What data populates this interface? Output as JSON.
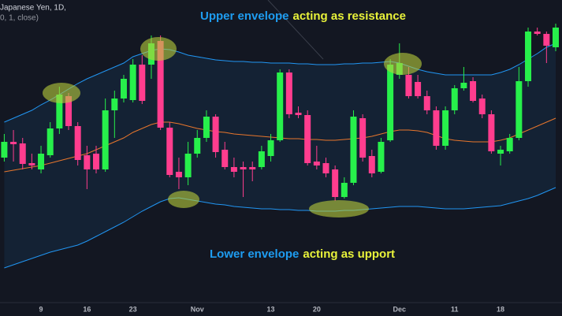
{
  "chart_data": {
    "type": "candlestick",
    "title": "Japanese Yen, 1D,",
    "subtitle": "0, 1, close)",
    "categories": [
      null,
      null,
      null,
      null,
      "9",
      null,
      null,
      null,
      null,
      "16",
      null,
      null,
      null,
      null,
      "23",
      null,
      null,
      null,
      null,
      null,
      null,
      "Nov",
      null,
      null,
      null,
      null,
      null,
      null,
      null,
      "13",
      null,
      null,
      null,
      null,
      "20",
      null,
      null,
      null,
      null,
      null,
      null,
      null,
      null,
      "Dec",
      null,
      null,
      null,
      null,
      null,
      "11",
      null,
      null,
      null,
      null,
      "18",
      null,
      null,
      null,
      null,
      null,
      null
    ],
    "open": [
      200,
      220,
      218,
      193,
      185,
      203,
      237,
      278,
      240,
      203,
      205,
      185,
      260,
      275,
      273,
      318,
      318,
      348,
      238,
      182,
      175,
      205,
      225,
      252,
      210,
      188,
      188,
      188,
      188,
      202,
      222,
      308,
      257,
      254,
      195,
      193,
      185,
      150,
      168,
      250,
      202,
      182,
      222,
      305,
      305,
      296,
      278,
      260,
      215,
      260,
      288,
      297,
      275,
      255,
      205,
      208,
      225,
      297,
      360,
      357,
      340
    ],
    "high": [
      230,
      235,
      225,
      205,
      215,
      245,
      290,
      282,
      245,
      215,
      215,
      275,
      285,
      305,
      325,
      330,
      355,
      355,
      245,
      200,
      220,
      235,
      260,
      255,
      220,
      200,
      195,
      195,
      215,
      230,
      312,
      312,
      265,
      260,
      215,
      200,
      190,
      175,
      260,
      255,
      210,
      225,
      325,
      345,
      315,
      305,
      285,
      265,
      265,
      292,
      315,
      302,
      280,
      260,
      215,
      230,
      315,
      365,
      365,
      360,
      370
    ],
    "low": [
      195,
      195,
      185,
      185,
      180,
      200,
      230,
      235,
      190,
      160,
      180,
      182,
      225,
      270,
      270,
      268,
      300,
      235,
      175,
      160,
      165,
      200,
      220,
      200,
      185,
      175,
      150,
      170,
      185,
      195,
      220,
      250,
      250,
      190,
      185,
      175,
      145,
      148,
      165,
      195,
      175,
      180,
      220,
      300,
      275,
      275,
      255,
      210,
      210,
      255,
      285,
      270,
      250,
      205,
      190,
      205,
      222,
      290,
      355,
      320,
      335
    ],
    "close": [
      220,
      217,
      192,
      190,
      205,
      237,
      280,
      240,
      197,
      185,
      185,
      260,
      275,
      300,
      318,
      272,
      345,
      238,
      178,
      175,
      205,
      225,
      252,
      207,
      188,
      182,
      185,
      185,
      208,
      222,
      308,
      255,
      254,
      193,
      190,
      180,
      150,
      168,
      252,
      200,
      180,
      220,
      318,
      320,
      278,
      278,
      260,
      215,
      260,
      288,
      295,
      272,
      255,
      208,
      210,
      225,
      297,
      360,
      357,
      342,
      365
    ],
    "up_color": "#27f04b",
    "down_color": "#ff3d8e",
    "lines": [
      {
        "color": "#2196f3",
        "values": [
          245,
          250,
          255,
          260,
          267,
          273,
          280,
          287,
          294,
          300,
          305,
          310,
          315,
          320,
          328,
          332,
          336,
          338,
          337,
          334,
          330,
          328,
          326,
          324,
          323,
          322,
          322,
          321,
          321,
          320,
          320,
          320,
          319,
          319,
          318,
          318,
          318,
          319,
          319,
          320,
          320,
          321,
          322,
          320,
          316,
          312,
          309,
          307,
          305,
          305,
          305,
          305,
          305,
          305,
          308,
          312,
          318,
          325,
          332,
          340,
          345
        ]
      },
      {
        "color": "#e8762c",
        "values": [
          182,
          184,
          186,
          188,
          190,
          193,
          196,
          199,
          202,
          205,
          210,
          215,
          220,
          225,
          232,
          237,
          242,
          245,
          245,
          243,
          240,
          237,
          235,
          233,
          232,
          230,
          229,
          228,
          227,
          226,
          225,
          224,
          224,
          223,
          223,
          222,
          222,
          223,
          224,
          225,
          227,
          230,
          233,
          235,
          235,
          234,
          232,
          228,
          224,
          222,
          221,
          220,
          220,
          220,
          222,
          225,
          230,
          235,
          240,
          245,
          250
        ]
      },
      {
        "color": "#2196f3",
        "values": [
          60,
          64,
          68,
          72,
          76,
          80,
          83,
          86,
          89,
          94,
          100,
          106,
          112,
          118,
          125,
          132,
          138,
          144,
          148,
          149,
          147,
          145,
          143,
          141,
          140,
          138,
          137,
          136,
          135,
          135,
          134,
          134,
          133,
          133,
          132,
          132,
          132,
          133,
          133,
          134,
          135,
          136,
          137,
          138,
          138,
          138,
          137,
          136,
          135,
          135,
          135,
          136,
          137,
          138,
          139,
          142,
          145,
          148,
          152,
          157,
          162
        ]
      }
    ],
    "ylim": [
      20,
      400
    ],
    "annotations": [
      {
        "parts": [
          {
            "text": "Upper envelope",
            "color": "#1e9cf0"
          },
          {
            "text": "acting as resistance",
            "color": "#e8f23a"
          }
        ]
      },
      {
        "parts": [
          {
            "text": "Lower envelope",
            "color": "#1e9cf0"
          },
          {
            "text": "acting as upport",
            "color": "#e8f23a"
          }
        ]
      }
    ]
  }
}
